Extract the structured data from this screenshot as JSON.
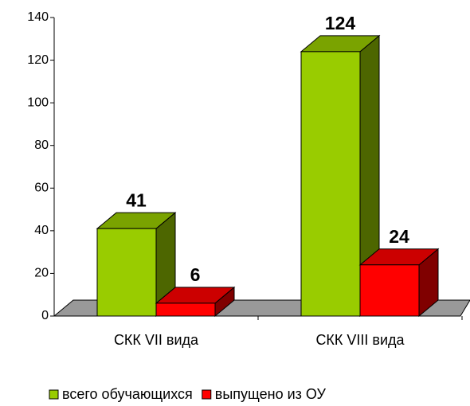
{
  "chart_data": {
    "type": "bar3d",
    "categories": [
      "СКК VII вида",
      "СКК VIII вида"
    ],
    "series": [
      {
        "name": "всего обучающихся",
        "color": "#99cc00",
        "values": [
          41,
          124
        ]
      },
      {
        "name": "выпущено из ОУ",
        "color": "#ff0000",
        "values": [
          6,
          24
        ]
      }
    ],
    "ylim": [
      0,
      140
    ],
    "yticks": [
      0,
      20,
      40,
      60,
      80,
      100,
      120,
      140
    ],
    "legend": "bottom"
  }
}
